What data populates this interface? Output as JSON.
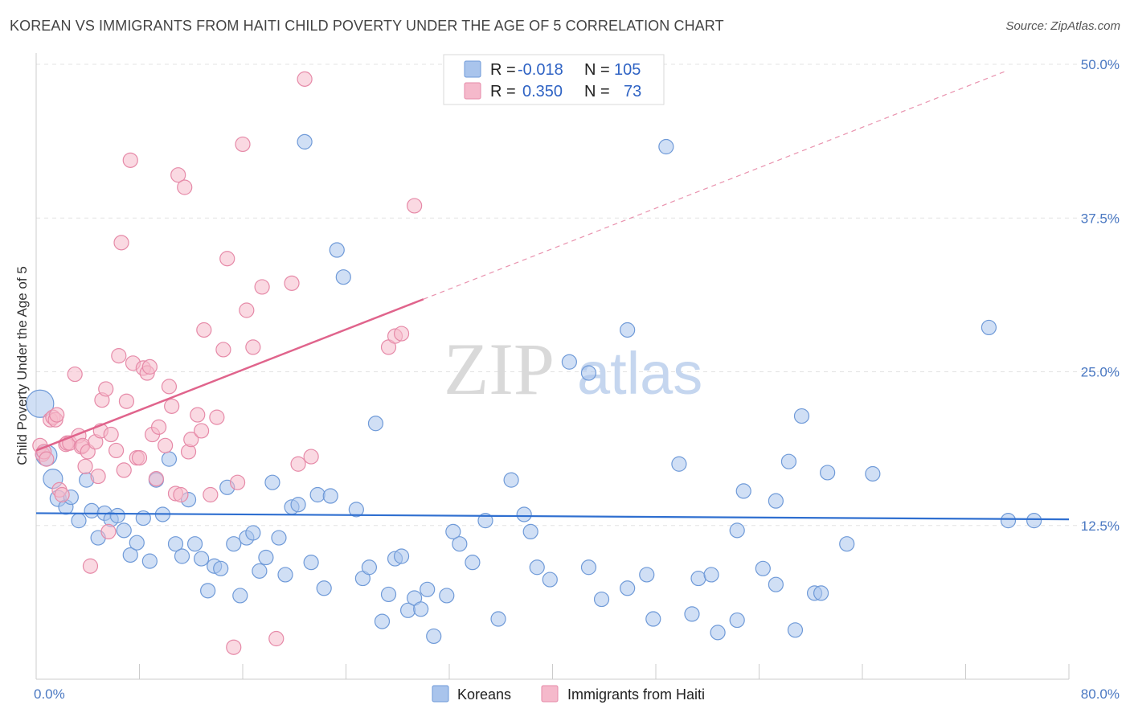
{
  "title": "KOREAN VS IMMIGRANTS FROM HAITI CHILD POVERTY UNDER THE AGE OF 5 CORRELATION CHART",
  "source": "Source: ZipAtlas.com",
  "watermark": {
    "zip": "ZIP",
    "atlas": "atlas"
  },
  "legend": {
    "r_label": "R =",
    "n_label": "N =",
    "rows": [
      {
        "r": "-0.018",
        "n": "105"
      },
      {
        "r": "0.350",
        "n": "73"
      }
    ]
  },
  "colors": {
    "koreans_fill": "#a9c4ec",
    "koreans_stroke": "#6f9ad8",
    "koreans_line": "#2f6fd0",
    "haiti_fill": "#f5b9cb",
    "haiti_stroke": "#e68aa8",
    "haiti_line": "#e0648c",
    "grid": "#e3e3e3",
    "tick_text": "#4a78c2"
  },
  "chart_data": {
    "type": "scatter",
    "title": "KOREAN VS IMMIGRANTS FROM HAITI CHILD POVERTY UNDER THE AGE OF 5 CORRELATION CHART",
    "xlabel": "",
    "ylabel": "Child Poverty Under the Age of 5",
    "xlim": [
      0,
      80
    ],
    "ylim": [
      0,
      50
    ],
    "x_tick_labels": [
      "0.0%",
      "80.0%"
    ],
    "y_tick_labels": [
      "12.5%",
      "25.0%",
      "37.5%",
      "50.0%"
    ],
    "y_ticks": [
      12.5,
      25.0,
      37.5,
      50.0
    ],
    "grid": "horizontal dashed",
    "legend_position": "top-center",
    "series": [
      {
        "name": "Koreans",
        "r": -0.018,
        "n": 105,
        "trend": {
          "x": [
            0,
            80
          ],
          "y": [
            13.5,
            13.0
          ],
          "style": "solid"
        },
        "points": [
          [
            0.3,
            22.4,
            17
          ],
          [
            0.8,
            18.2,
            13
          ],
          [
            1.3,
            16.3,
            12
          ],
          [
            1.7,
            14.7,
            10
          ],
          [
            2.3,
            14.0,
            9
          ],
          [
            2.7,
            14.8,
            9
          ],
          [
            3.3,
            12.9,
            9
          ],
          [
            3.9,
            16.2,
            9
          ],
          [
            4.3,
            13.7,
            9
          ],
          [
            4.8,
            11.5,
            9
          ],
          [
            5.3,
            13.5,
            9
          ],
          [
            5.8,
            13.0,
            9
          ],
          [
            6.3,
            13.3,
            9
          ],
          [
            6.8,
            12.1,
            9
          ],
          [
            7.3,
            10.1,
            9
          ],
          [
            7.8,
            11.1,
            9
          ],
          [
            8.3,
            13.1,
            9
          ],
          [
            8.8,
            9.6,
            9
          ],
          [
            9.3,
            16.2,
            9
          ],
          [
            9.8,
            13.4,
            9
          ],
          [
            10.3,
            17.9,
            9
          ],
          [
            10.8,
            11.0,
            9
          ],
          [
            11.3,
            10.0,
            9
          ],
          [
            11.8,
            14.6,
            9
          ],
          [
            12.3,
            11.0,
            9
          ],
          [
            12.8,
            9.8,
            9
          ],
          [
            13.3,
            7.2,
            9
          ],
          [
            13.8,
            9.2,
            9
          ],
          [
            14.3,
            9.0,
            9
          ],
          [
            14.8,
            15.6,
            9
          ],
          [
            15.3,
            11.0,
            9
          ],
          [
            15.8,
            6.8,
            9
          ],
          [
            16.3,
            11.5,
            9
          ],
          [
            16.8,
            11.9,
            9
          ],
          [
            17.3,
            8.8,
            9
          ],
          [
            17.8,
            9.9,
            9
          ],
          [
            18.3,
            16.0,
            9
          ],
          [
            18.8,
            11.5,
            9
          ],
          [
            19.3,
            8.5,
            9
          ],
          [
            19.8,
            14.0,
            9
          ],
          [
            20.3,
            14.2,
            9
          ],
          [
            20.8,
            43.7,
            9
          ],
          [
            21.3,
            9.5,
            9
          ],
          [
            21.8,
            15.0,
            9
          ],
          [
            22.3,
            7.4,
            9
          ],
          [
            22.8,
            14.9,
            9
          ],
          [
            23.3,
            34.9,
            9
          ],
          [
            23.8,
            32.7,
            9
          ],
          [
            24.8,
            13.8,
            9
          ],
          [
            25.3,
            8.2,
            9
          ],
          [
            25.8,
            9.1,
            9
          ],
          [
            26.3,
            20.8,
            9
          ],
          [
            26.8,
            4.7,
            9
          ],
          [
            27.3,
            6.9,
            9
          ],
          [
            27.8,
            9.8,
            9
          ],
          [
            28.3,
            10.0,
            9
          ],
          [
            28.8,
            5.6,
            9
          ],
          [
            29.3,
            6.6,
            9
          ],
          [
            29.8,
            5.7,
            9
          ],
          [
            30.3,
            7.3,
            9
          ],
          [
            30.8,
            3.5,
            9
          ],
          [
            31.8,
            6.8,
            9
          ],
          [
            32.3,
            12.0,
            9
          ],
          [
            32.8,
            11.0,
            9
          ],
          [
            33.8,
            9.5,
            9
          ],
          [
            34.8,
            12.9,
            9
          ],
          [
            35.8,
            4.9,
            9
          ],
          [
            36.8,
            16.2,
            9
          ],
          [
            37.8,
            13.4,
            9
          ],
          [
            38.3,
            12.0,
            9
          ],
          [
            38.8,
            9.1,
            9
          ],
          [
            39.8,
            8.1,
            9
          ],
          [
            41.3,
            25.8,
            9
          ],
          [
            42.8,
            24.9,
            9
          ],
          [
            42.8,
            9.1,
            9
          ],
          [
            43.8,
            6.5,
            9
          ],
          [
            45.8,
            7.4,
            9
          ],
          [
            45.8,
            28.4,
            9
          ],
          [
            47.3,
            8.5,
            9
          ],
          [
            47.8,
            4.9,
            9
          ],
          [
            48.8,
            43.3,
            9
          ],
          [
            49.8,
            17.5,
            9
          ],
          [
            50.8,
            5.3,
            9
          ],
          [
            51.3,
            8.2,
            9
          ],
          [
            52.3,
            8.5,
            9
          ],
          [
            52.8,
            3.8,
            9
          ],
          [
            54.3,
            12.1,
            9
          ],
          [
            54.3,
            4.8,
            9
          ],
          [
            54.8,
            15.3,
            9
          ],
          [
            56.3,
            9.0,
            9
          ],
          [
            57.3,
            14.5,
            9
          ],
          [
            57.3,
            7.7,
            9
          ],
          [
            58.3,
            17.7,
            9
          ],
          [
            58.8,
            4.0,
            9
          ],
          [
            59.3,
            21.4,
            9
          ],
          [
            60.3,
            7.0,
            9
          ],
          [
            60.8,
            7.0,
            9
          ],
          [
            61.3,
            16.8,
            9
          ],
          [
            62.8,
            11.0,
            9
          ],
          [
            64.8,
            16.7,
            9
          ],
          [
            73.8,
            28.6,
            9
          ],
          [
            75.3,
            12.9,
            9
          ],
          [
            77.3,
            12.9,
            9
          ]
        ]
      },
      {
        "name": "Immigrants from Haiti",
        "r": 0.35,
        "n": 73,
        "trend": {
          "x": [
            0,
            30
          ],
          "y": [
            18.6,
            30.9
          ],
          "style": "solid",
          "extension": {
            "x": [
              30,
              75
            ],
            "y": [
              30.9,
              49.4
            ],
            "style": "dashed"
          }
        },
        "points": [
          [
            0.3,
            19.0,
            9
          ],
          [
            0.5,
            18.3,
            9
          ],
          [
            0.6,
            18.5,
            9
          ],
          [
            0.8,
            17.9,
            9
          ],
          [
            1.1,
            21.1,
            9
          ],
          [
            1.3,
            21.3,
            9
          ],
          [
            1.5,
            21.1,
            9
          ],
          [
            1.6,
            21.5,
            9
          ],
          [
            1.8,
            15.4,
            9
          ],
          [
            2.0,
            15.0,
            9
          ],
          [
            2.3,
            19.1,
            9
          ],
          [
            2.4,
            19.2,
            9
          ],
          [
            2.6,
            19.2,
            9
          ],
          [
            3.0,
            24.8,
            9
          ],
          [
            3.3,
            19.8,
            9
          ],
          [
            3.5,
            18.9,
            9
          ],
          [
            3.6,
            19.0,
            9
          ],
          [
            3.8,
            17.3,
            9
          ],
          [
            4.0,
            18.5,
            9
          ],
          [
            4.2,
            9.2,
            9
          ],
          [
            4.6,
            19.3,
            9
          ],
          [
            4.8,
            16.5,
            9
          ],
          [
            5.0,
            20.2,
            9
          ],
          [
            5.1,
            22.7,
            9
          ],
          [
            5.4,
            23.6,
            9
          ],
          [
            5.6,
            12.0,
            9
          ],
          [
            5.8,
            19.9,
            9
          ],
          [
            6.2,
            18.6,
            9
          ],
          [
            6.4,
            26.3,
            9
          ],
          [
            6.6,
            35.5,
            9
          ],
          [
            6.8,
            17.0,
            9
          ],
          [
            7.0,
            22.6,
            9
          ],
          [
            7.3,
            42.2,
            9
          ],
          [
            7.5,
            25.7,
            9
          ],
          [
            7.8,
            18.0,
            9
          ],
          [
            8.0,
            18.0,
            9
          ],
          [
            8.3,
            25.3,
            9
          ],
          [
            8.6,
            24.9,
            9
          ],
          [
            8.8,
            25.4,
            9
          ],
          [
            9.0,
            19.9,
            9
          ],
          [
            9.3,
            16.3,
            9
          ],
          [
            9.5,
            20.5,
            9
          ],
          [
            10.0,
            19.0,
            9
          ],
          [
            10.3,
            23.8,
            9
          ],
          [
            10.5,
            22.2,
            9
          ],
          [
            10.8,
            15.1,
            9
          ],
          [
            11.0,
            41.0,
            9
          ],
          [
            11.2,
            15.0,
            9
          ],
          [
            11.5,
            40.0,
            9
          ],
          [
            11.8,
            18.5,
            9
          ],
          [
            12.0,
            19.5,
            9
          ],
          [
            12.5,
            21.5,
            9
          ],
          [
            12.8,
            20.2,
            9
          ],
          [
            13.0,
            28.4,
            9
          ],
          [
            13.5,
            15.0,
            9
          ],
          [
            14.0,
            21.3,
            9
          ],
          [
            14.5,
            26.8,
            9
          ],
          [
            14.8,
            34.2,
            9
          ],
          [
            15.3,
            2.6,
            9
          ],
          [
            15.6,
            16.0,
            9
          ],
          [
            16.0,
            43.5,
            9
          ],
          [
            16.3,
            30.0,
            9
          ],
          [
            16.8,
            27.0,
            9
          ],
          [
            17.5,
            31.9,
            9
          ],
          [
            18.6,
            3.3,
            9
          ],
          [
            19.8,
            32.2,
            9
          ],
          [
            20.3,
            17.5,
            9
          ],
          [
            20.8,
            48.8,
            9
          ],
          [
            21.3,
            18.1,
            9
          ],
          [
            27.3,
            27.0,
            9
          ],
          [
            27.8,
            27.9,
            9
          ],
          [
            28.3,
            28.1,
            9
          ],
          [
            29.3,
            38.5,
            9
          ]
        ]
      }
    ]
  }
}
